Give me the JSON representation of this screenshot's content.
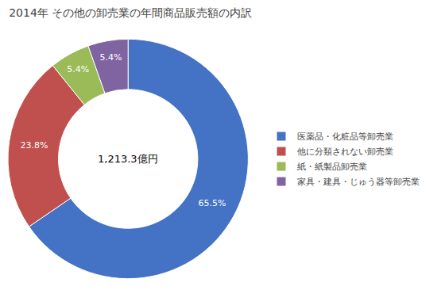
{
  "chart_data": {
    "type": "pie",
    "title": "2014年 その他の卸売業の年間商品販売額の内訳",
    "annotations": [
      "1,213.3億円"
    ],
    "categories": [
      "医薬品・化粧品等卸売業",
      "他に分類されない卸売業",
      "紙・紙製品卸売業",
      "家具・建具・じゅう器等卸売業"
    ],
    "values": [
      65.5,
      23.8,
      5.4,
      5.4
    ],
    "value_labels": [
      "65.5%",
      "23.8%",
      "5.4%",
      "5.4%"
    ],
    "colors": [
      "#4472C4",
      "#C0504D",
      "#9BBB59",
      "#8064A2"
    ],
    "data_labels": true,
    "legend": "right"
  }
}
